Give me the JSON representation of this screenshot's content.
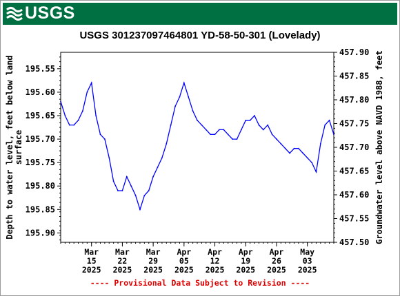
{
  "colors": {
    "banner": "#006f41",
    "series": "#0000ff",
    "provisional": "#dd0000"
  },
  "header": {
    "logo_text": "USGS",
    "logo_icon": "usgs-wave-icon"
  },
  "provisional_note": "---- Provisional Data Subject to Revision ----",
  "chart_data": {
    "type": "line",
    "title": "USGS 301237097464801 YD-58-50-301 (Lovelady)",
    "ylabel_left": [
      "Depth to water level, feet below land",
      "surface"
    ],
    "ylabel_right": "Groundwater level above NAVD 1988, feet",
    "y_left_range": [
      195.92,
      195.515
    ],
    "y_left_inverted": true,
    "y_left_ticks": [
      "195.55",
      "195.60",
      "195.65",
      "195.70",
      "195.75",
      "195.80",
      "195.85",
      "195.90"
    ],
    "y_right_range": [
      457.5,
      457.9
    ],
    "y_right_ticks": [
      "457.50",
      "457.55",
      "457.60",
      "457.65",
      "457.70",
      "457.75",
      "457.80",
      "457.85",
      "457.90"
    ],
    "x_range": [
      "2025-03-08",
      "2025-05-09"
    ],
    "x_ticks": [
      {
        "date": "2025-03-15",
        "lines": [
          "Mar",
          "15",
          "2025"
        ]
      },
      {
        "date": "2025-03-22",
        "lines": [
          "Mar",
          "22",
          "2025"
        ]
      },
      {
        "date": "2025-03-29",
        "lines": [
          "Mar",
          "29",
          "2025"
        ]
      },
      {
        "date": "2025-04-05",
        "lines": [
          "Apr",
          "05",
          "2025"
        ]
      },
      {
        "date": "2025-04-12",
        "lines": [
          "Apr",
          "12",
          "2025"
        ]
      },
      {
        "date": "2025-04-19",
        "lines": [
          "Apr",
          "19",
          "2025"
        ]
      },
      {
        "date": "2025-04-26",
        "lines": [
          "Apr",
          "26",
          "2025"
        ]
      },
      {
        "date": "2025-05-03",
        "lines": [
          "May",
          "03",
          "2025"
        ]
      }
    ],
    "grid": false,
    "series": [
      {
        "x": [
          "2025-03-08",
          "2025-03-09",
          "2025-03-10",
          "2025-03-11",
          "2025-03-12",
          "2025-03-13",
          "2025-03-14",
          "2025-03-15",
          "2025-03-16",
          "2025-03-17",
          "2025-03-18",
          "2025-03-19",
          "2025-03-20",
          "2025-03-21",
          "2025-03-22",
          "2025-03-23",
          "2025-03-24",
          "2025-03-25",
          "2025-03-26",
          "2025-03-27",
          "2025-03-28",
          "2025-03-29",
          "2025-03-30",
          "2025-03-31",
          "2025-04-01",
          "2025-04-02",
          "2025-04-03",
          "2025-04-04",
          "2025-04-05",
          "2025-04-06",
          "2025-04-07",
          "2025-04-08",
          "2025-04-09",
          "2025-04-10",
          "2025-04-11",
          "2025-04-12",
          "2025-04-13",
          "2025-04-14",
          "2025-04-15",
          "2025-04-16",
          "2025-04-17",
          "2025-04-18",
          "2025-04-19",
          "2025-04-20",
          "2025-04-21",
          "2025-04-22",
          "2025-04-23",
          "2025-04-24",
          "2025-04-25",
          "2025-04-26",
          "2025-04-27",
          "2025-04-28",
          "2025-04-29",
          "2025-04-30",
          "2025-05-01",
          "2025-05-02",
          "2025-05-03",
          "2025-05-04",
          "2025-05-05",
          "2025-05-06",
          "2025-05-07",
          "2025-05-08",
          "2025-05-09"
        ],
        "values": [
          195.62,
          195.65,
          195.67,
          195.67,
          195.66,
          195.64,
          195.6,
          195.58,
          195.65,
          195.69,
          195.7,
          195.74,
          195.79,
          195.81,
          195.81,
          195.78,
          195.8,
          195.82,
          195.85,
          195.82,
          195.81,
          195.78,
          195.76,
          195.74,
          195.71,
          195.67,
          195.63,
          195.61,
          195.58,
          195.61,
          195.64,
          195.66,
          195.67,
          195.68,
          195.69,
          195.69,
          195.68,
          195.68,
          195.69,
          195.7,
          195.7,
          195.68,
          195.66,
          195.66,
          195.65,
          195.67,
          195.68,
          195.67,
          195.69,
          195.7,
          195.71,
          195.72,
          195.73,
          195.72,
          195.72,
          195.73,
          195.74,
          195.75,
          195.77,
          195.71,
          195.67,
          195.66,
          195.69
        ]
      }
    ]
  }
}
